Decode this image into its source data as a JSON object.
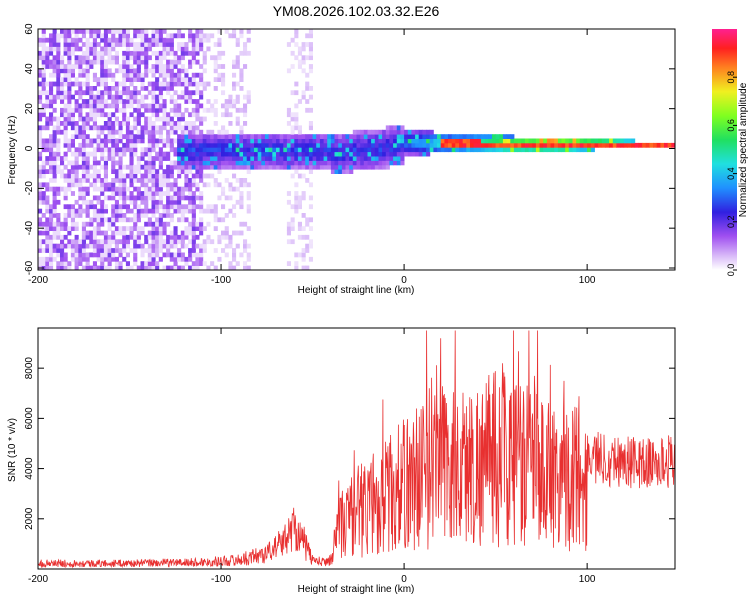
{
  "figure_title": "YM08.2026.102.03.32.E26",
  "colors": {
    "snr_line": "#e83030",
    "axis": "#000000",
    "colormap": [
      "#ffffff",
      "#c8a8f0",
      "#8a3ee0",
      "#2020e0",
      "#2080ff",
      "#20e0e0",
      "#20e060",
      "#60ff20",
      "#f0f020",
      "#ff8020",
      "#ff2020",
      "#ff2090"
    ]
  },
  "chart_data": [
    {
      "type": "heatmap",
      "title": "",
      "xlabel": "Height of straight line (km)",
      "ylabel": "Frequency (Hz)",
      "xlim": [
        -200,
        148
      ],
      "ylim": [
        -61,
        60
      ],
      "xticks": [
        -200,
        -100,
        0,
        100
      ],
      "yticks": [
        -60,
        -40,
        -20,
        0,
        20,
        40,
        60
      ],
      "xtick_labels": [
        "-200",
        "-100",
        "0",
        "100"
      ],
      "ytick_labels": [
        "-60",
        "-40",
        "-20",
        "0",
        "20",
        "40",
        "60"
      ],
      "colorbar": {
        "label": "Normalized spectral amplitude",
        "range": [
          0,
          1
        ],
        "ticks": [
          0.0,
          0.2,
          0.4,
          0.6,
          0.8
        ],
        "tick_labels": [
          "0.0",
          "0.2",
          "0.4",
          "0.6",
          "0.8"
        ]
      },
      "description_regions": [
        {
          "x_range": [
            -200,
            -110
          ],
          "freq_range": [
            -60,
            60
          ],
          "level": 0.05
        },
        {
          "x_range": [
            -110,
            -85
          ],
          "freq_range": [
            -60,
            60
          ],
          "level": 0.03
        },
        {
          "x_range": [
            -65,
            -50
          ],
          "freq_range": [
            -60,
            60
          ],
          "level": 0.03
        },
        {
          "x_range": [
            -120,
            148
          ],
          "freq_range": [
            -12,
            8
          ],
          "level": 0.3
        },
        {
          "x_range": [
            0,
            148
          ],
          "freq_range": [
            -2,
            4
          ],
          "level": 0.6
        },
        {
          "x_range": [
            20,
            148
          ],
          "freq_range": [
            -1,
            1
          ],
          "level": 0.95
        }
      ]
    },
    {
      "type": "line",
      "title": "",
      "xlabel": "Height of straight line (km)",
      "ylabel": "SNR (10 * v/v)",
      "xlim": [
        -200,
        148
      ],
      "ylim": [
        0,
        9600
      ],
      "xticks": [
        -200,
        -100,
        0,
        100
      ],
      "yticks": [
        2000,
        4000,
        6000,
        8000
      ],
      "xtick_labels": [
        "-200",
        "-100",
        "0",
        "100"
      ],
      "ytick_labels": [
        "2000",
        "4000",
        "6000",
        "8000"
      ],
      "series": [
        {
          "name": "SNR",
          "x": [
            -200,
            -150,
            -110,
            -90,
            -75,
            -65,
            -60,
            -55,
            -50,
            -45,
            -40,
            -36,
            -34,
            -30,
            -20,
            -10,
            0,
            10,
            15,
            20,
            30,
            40,
            50,
            55,
            60,
            70,
            80,
            90,
            100,
            110,
            120,
            130,
            140,
            145,
            148
          ],
          "y": [
            250,
            250,
            300,
            400,
            700,
            1300,
            1900,
            1200,
            400,
            300,
            400,
            1900,
            2200,
            2600,
            3200,
            3600,
            4200,
            4800,
            5200,
            5300,
            5000,
            5200,
            5600,
            5800,
            5200,
            5000,
            4800,
            4600,
            4500,
            4400,
            4300,
            4200,
            4200,
            4300,
            4500
          ]
        }
      ]
    }
  ]
}
